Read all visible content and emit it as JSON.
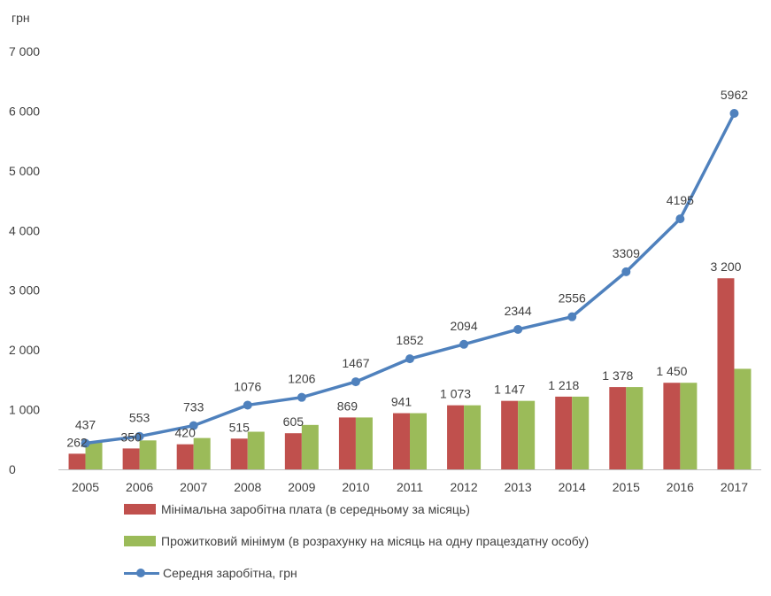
{
  "colors": {
    "min_wage": "#C0504D",
    "subsistence": "#9BBB59",
    "avg_wage": "#4F81BD",
    "text": "#404040",
    "axis": "#BFBFBF"
  },
  "chart_data": {
    "type": "bar",
    "unit_label": "грн",
    "ylim": [
      0,
      7000
    ],
    "yticks": [
      0,
      1000,
      2000,
      3000,
      4000,
      5000,
      6000,
      7000
    ],
    "ytick_labels": [
      "0",
      "1 000",
      "2 000",
      "3 000",
      "4 000",
      "5 000",
      "6 000",
      "7 000"
    ],
    "categories": [
      "2005",
      "2006",
      "2007",
      "2008",
      "2009",
      "2010",
      "2011",
      "2012",
      "2013",
      "2014",
      "2015",
      "2016",
      "2017"
    ],
    "grid": false,
    "legend_position": "bottom",
    "series": [
      {
        "name": "Мінімальна заробітна плата (в середньому за місяць)",
        "kind": "bar",
        "color": "#C0504D",
        "values": [
          262,
          350,
          420,
          515,
          605,
          869,
          941,
          1073,
          1147,
          1218,
          1378,
          1450,
          3200
        ],
        "labels": [
          "262",
          "350",
          "420",
          "515",
          "605",
          "869",
          "941",
          "1 073",
          "1 147",
          "1 218",
          "1 378",
          "1 450",
          "3 200"
        ]
      },
      {
        "name": "Прожитковий мінімум (в розрахунку на місяць на одну працездатну особу)",
        "kind": "bar",
        "color": "#9BBB59",
        "values": [
          453,
          485,
          525,
          630,
          744,
          869,
          941,
          1073,
          1147,
          1218,
          1378,
          1450,
          1684
        ],
        "labels": []
      },
      {
        "name": "Середня заробітна, грн",
        "kind": "line",
        "color": "#4F81BD",
        "values": [
          437,
          553,
          733,
          1076,
          1206,
          1467,
          1852,
          2094,
          2344,
          2556,
          3309,
          4195,
          5962
        ],
        "labels": [
          "437",
          "553",
          "733",
          "1076",
          "1206",
          "1467",
          "1852",
          "2094",
          "2344",
          "2556",
          "3309",
          "4195",
          "5962"
        ]
      }
    ]
  }
}
